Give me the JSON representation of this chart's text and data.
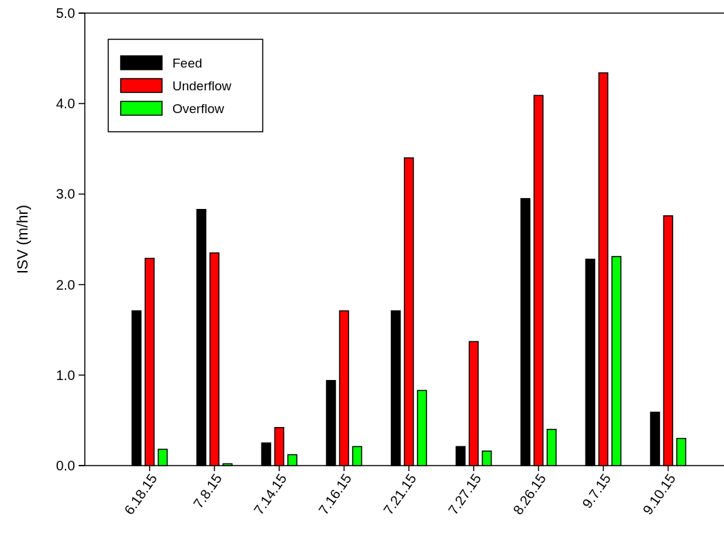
{
  "chart_data": {
    "type": "bar",
    "ylabel": "ISV (m/hr)",
    "categories": [
      "6.18.15",
      "7.8.15",
      "7.14.15",
      "7.16.15",
      "7.21.15",
      "7.27.15",
      "8.26.15",
      "9.7.15",
      "9.10.15"
    ],
    "series": [
      {
        "name": "Feed",
        "color": "#000000",
        "values": [
          1.71,
          2.83,
          0.25,
          0.94,
          1.71,
          0.21,
          2.95,
          2.28,
          0.59
        ]
      },
      {
        "name": "Underflow",
        "color": "#ff0000",
        "values": [
          2.29,
          2.35,
          0.42,
          1.71,
          3.4,
          1.37,
          4.09,
          4.34,
          2.76
        ]
      },
      {
        "name": "Overflow",
        "color": "#00ff00",
        "values": [
          0.18,
          0.02,
          0.12,
          0.21,
          0.83,
          0.16,
          0.4,
          2.31,
          0.3
        ]
      }
    ],
    "ylim": [
      0,
      5
    ],
    "yticks": [
      {
        "value": 0,
        "label": "0.0"
      },
      {
        "value": 1,
        "label": "1.0"
      },
      {
        "value": 2,
        "label": "2.0"
      },
      {
        "value": 3,
        "label": "3.0"
      },
      {
        "value": 4,
        "label": "4.0"
      },
      {
        "value": 5,
        "label": "5.0"
      }
    ],
    "grid": false,
    "legend": "top left"
  }
}
